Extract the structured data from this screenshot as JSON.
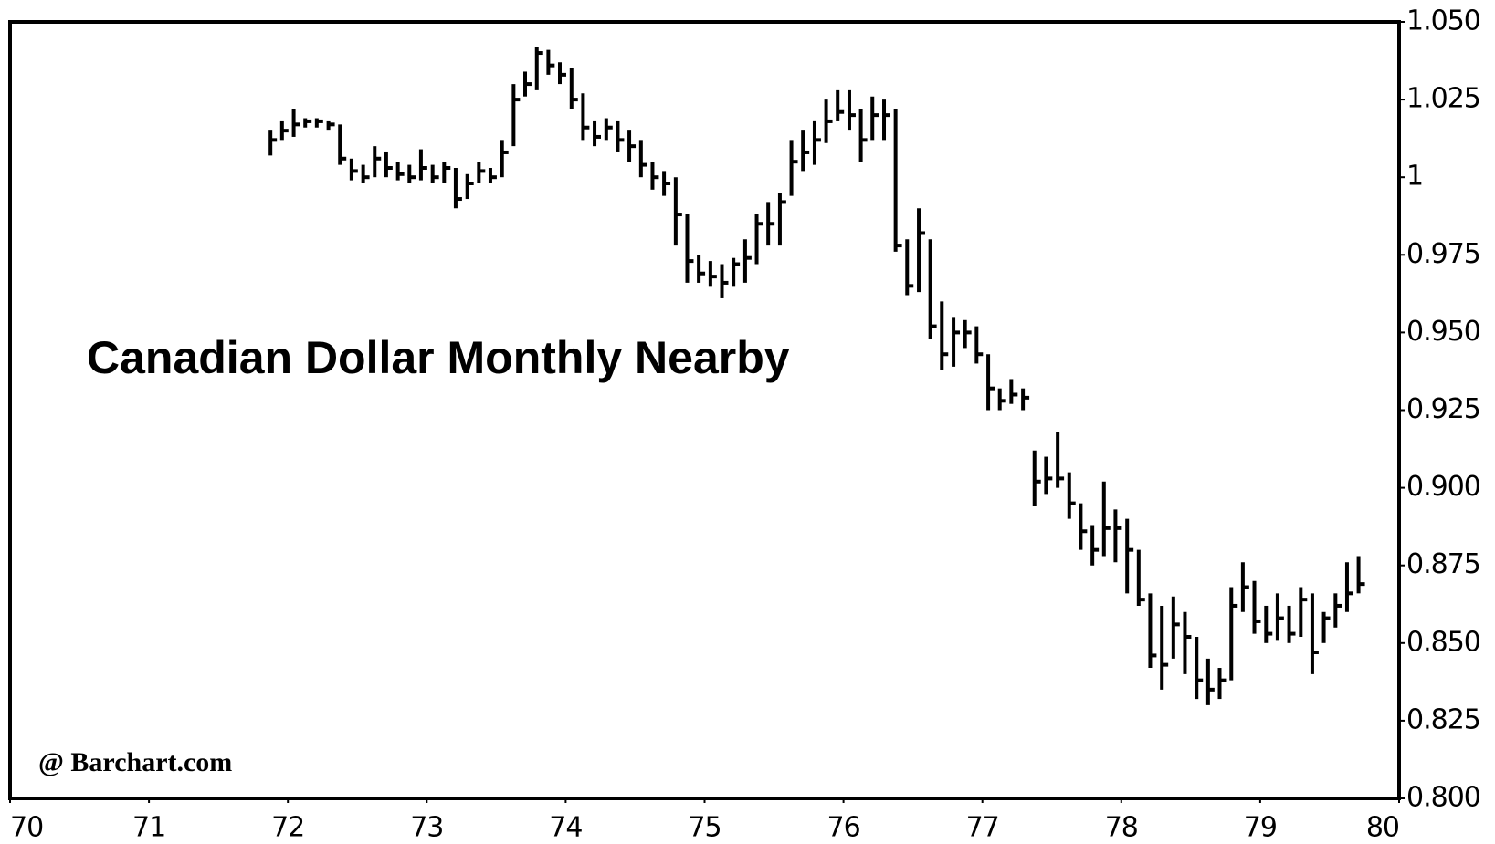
{
  "chart_data": {
    "type": "hlc",
    "title": "Canadian Dollar Monthly Nearby",
    "watermark": "@ Barchart.com",
    "color": "#000000",
    "xlim": [
      70,
      80
    ],
    "xticks": [
      70,
      71,
      72,
      73,
      74,
      75,
      76,
      77,
      78,
      79,
      80
    ],
    "ylim": [
      0.8,
      1.05
    ],
    "yticks": [
      {
        "value": 0.8,
        "label": "0.800"
      },
      0.825,
      {
        "value": 0.85,
        "label": "0.850"
      },
      0.875,
      {
        "value": 0.9,
        "label": "0.900"
      },
      0.925,
      {
        "value": 0.95,
        "label": "0.950"
      },
      0.975,
      1,
      1.025,
      {
        "value": 1.05,
        "label": "1.050"
      }
    ],
    "x": [
      71.875,
      71.958,
      72.042,
      72.125,
      72.208,
      72.292,
      72.375,
      72.458,
      72.542,
      72.625,
      72.708,
      72.792,
      72.875,
      72.958,
      73.042,
      73.125,
      73.208,
      73.292,
      73.375,
      73.458,
      73.542,
      73.625,
      73.708,
      73.792,
      73.875,
      73.958,
      74.042,
      74.125,
      74.208,
      74.292,
      74.375,
      74.458,
      74.542,
      74.625,
      74.708,
      74.792,
      74.875,
      74.958,
      75.042,
      75.125,
      75.208,
      75.292,
      75.375,
      75.458,
      75.542,
      75.625,
      75.708,
      75.792,
      75.875,
      75.958,
      76.042,
      76.125,
      76.208,
      76.292,
      76.375,
      76.458,
      76.542,
      76.625,
      76.708,
      76.792,
      76.875,
      76.958,
      77.042,
      77.125,
      77.208,
      77.292,
      77.375,
      77.458,
      77.542,
      77.625,
      77.708,
      77.792,
      77.875,
      77.958,
      78.042,
      78.125,
      78.208,
      78.292,
      78.375,
      78.458,
      78.542,
      78.625,
      78.708,
      78.792,
      78.875,
      78.958,
      79.042,
      79.125,
      79.208,
      79.292,
      79.375,
      79.458,
      79.542,
      79.625,
      79.708
    ],
    "high": [
      1.015,
      1.018,
      1.022,
      1.019,
      1.019,
      1.018,
      1.017,
      1.006,
      1.004,
      1.01,
      1.008,
      1.005,
      1.004,
      1.009,
      1.004,
      1.005,
      1.003,
      1.001,
      1.005,
      1.003,
      1.012,
      1.03,
      1.034,
      1.042,
      1.041,
      1.037,
      1.035,
      1.027,
      1.018,
      1.019,
      1.018,
      1.015,
      1.012,
      1.005,
      1.002,
      1.0,
      0.988,
      0.975,
      0.973,
      0.972,
      0.974,
      0.98,
      0.988,
      0.992,
      0.995,
      1.012,
      1.015,
      1.018,
      1.025,
      1.028,
      1.028,
      1.022,
      1.026,
      1.025,
      1.022,
      0.98,
      0.99,
      0.98,
      0.96,
      0.955,
      0.954,
      0.952,
      0.943,
      0.932,
      0.935,
      0.932,
      0.912,
      0.91,
      0.918,
      0.905,
      0.895,
      0.888,
      0.902,
      0.893,
      0.89,
      0.88,
      0.866,
      0.862,
      0.865,
      0.86,
      0.852,
      0.845,
      0.842,
      0.868,
      0.876,
      0.87,
      0.862,
      0.866,
      0.862,
      0.868,
      0.866,
      0.86,
      0.866,
      0.876,
      0.878
    ],
    "low": [
      1.007,
      1.012,
      1.013,
      1.016,
      1.016,
      1.015,
      1.004,
      0.999,
      0.998,
      1.0,
      1.0,
      0.999,
      0.998,
      0.999,
      0.998,
      0.998,
      0.99,
      0.993,
      0.998,
      0.998,
      1.0,
      1.01,
      1.026,
      1.028,
      1.033,
      1.03,
      1.022,
      1.012,
      1.01,
      1.012,
      1.008,
      1.005,
      1.0,
      0.996,
      0.994,
      0.978,
      0.966,
      0.966,
      0.965,
      0.961,
      0.965,
      0.966,
      0.972,
      0.978,
      0.978,
      0.994,
      1.002,
      1.004,
      1.011,
      1.018,
      1.015,
      1.005,
      1.012,
      1.012,
      0.976,
      0.962,
      0.963,
      0.948,
      0.938,
      0.939,
      0.945,
      0.94,
      0.925,
      0.925,
      0.927,
      0.925,
      0.894,
      0.898,
      0.9,
      0.89,
      0.88,
      0.875,
      0.878,
      0.876,
      0.866,
      0.862,
      0.842,
      0.835,
      0.845,
      0.84,
      0.832,
      0.83,
      0.832,
      0.838,
      0.86,
      0.853,
      0.85,
      0.851,
      0.85,
      0.852,
      0.84,
      0.85,
      0.855,
      0.86,
      0.866
    ],
    "close": [
      1.012,
      1.015,
      1.017,
      1.018,
      1.018,
      1.017,
      1.006,
      1.002,
      1.0,
      1.006,
      1.003,
      1.001,
      1.0,
      1.003,
      1.0,
      1.003,
      0.993,
      0.998,
      1.002,
      1.0,
      1.008,
      1.025,
      1.03,
      1.04,
      1.036,
      1.033,
      1.025,
      1.016,
      1.013,
      1.016,
      1.012,
      1.01,
      1.004,
      1.0,
      0.998,
      0.988,
      0.973,
      0.969,
      0.968,
      0.966,
      0.972,
      0.974,
      0.985,
      0.985,
      0.992,
      1.005,
      1.008,
      1.012,
      1.018,
      1.021,
      1.02,
      1.012,
      1.02,
      1.02,
      0.978,
      0.965,
      0.982,
      0.952,
      0.943,
      0.95,
      0.95,
      0.943,
      0.932,
      0.928,
      0.93,
      0.929,
      0.902,
      0.903,
      0.903,
      0.895,
      0.886,
      0.88,
      0.887,
      0.887,
      0.88,
      0.864,
      0.846,
      0.843,
      0.856,
      0.852,
      0.838,
      0.835,
      0.838,
      0.862,
      0.868,
      0.857,
      0.853,
      0.858,
      0.853,
      0.864,
      0.847,
      0.858,
      0.862,
      0.866,
      0.869
    ]
  }
}
